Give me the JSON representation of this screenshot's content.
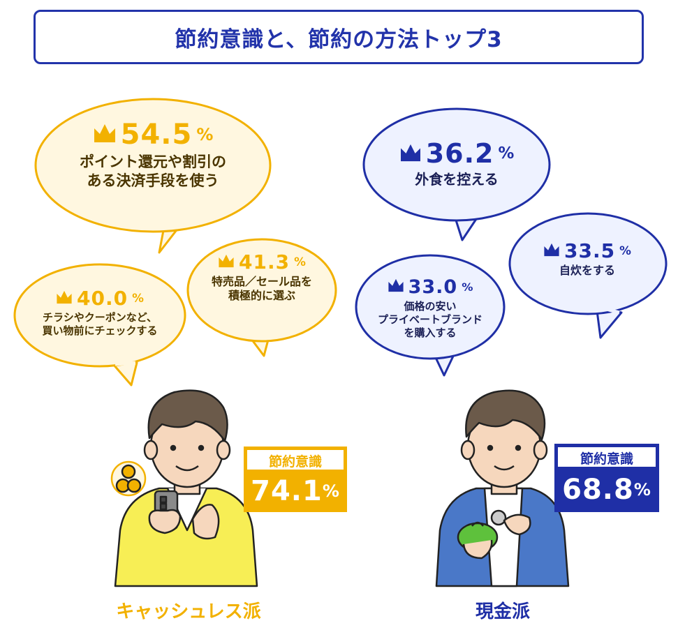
{
  "title": "節約意識と、節約の方法トップ3",
  "colors": {
    "yellow": "#f2b100",
    "blue": "#1f2fa6"
  },
  "cashless": {
    "group_label": "キャッシュレス派",
    "badge_heading": "節約意識",
    "badge_value": "74.1",
    "badge_unit": "%",
    "items": [
      {
        "rank": "1",
        "value": "54.5",
        "unit": "%",
        "line1": "ポイント還元や割引の",
        "line2": "ある決済手段を使う"
      },
      {
        "rank": "2",
        "value": "41.3",
        "unit": "%",
        "line1": "特売品／セール品を",
        "line2": "積極的に選ぶ"
      },
      {
        "rank": "3",
        "value": "40.0",
        "unit": "%",
        "line1": "チラシやクーポンなど、",
        "line2": "買い物前にチェックする"
      }
    ]
  },
  "cash": {
    "group_label": "現金派",
    "badge_heading": "節約意識",
    "badge_value": "68.8",
    "badge_unit": "%",
    "items": [
      {
        "rank": "1",
        "value": "36.2",
        "unit": "%",
        "line1": "外食を控える"
      },
      {
        "rank": "2",
        "value": "33.5",
        "unit": "%",
        "line1": "自炊をする"
      },
      {
        "rank": "3",
        "value": "33.0",
        "unit": "%",
        "line1": "価格の安い",
        "line2": "プライベートブランド",
        "line3": "を購入する"
      }
    ]
  }
}
